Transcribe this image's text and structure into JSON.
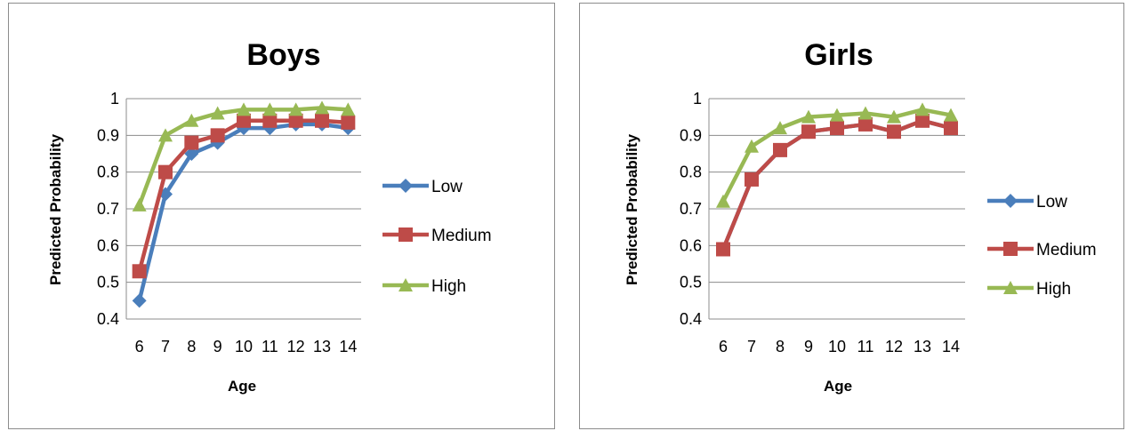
{
  "chart_data": [
    {
      "type": "line",
      "title": "Boys",
      "xlabel": "Age",
      "ylabel": "Predicted Probability",
      "categories": [
        "6",
        "7",
        "8",
        "9",
        "10",
        "11",
        "12",
        "13",
        "14"
      ],
      "ylim": [
        0.4,
        1
      ],
      "yticks": [
        "1",
        "0.9",
        "0.8",
        "0.7",
        "0.6",
        "0.5",
        "0.4"
      ],
      "grid": true,
      "legend": "right",
      "series": [
        {
          "name": "Low",
          "color": "#4a7ebb",
          "marker": "diamond",
          "values": [
            0.45,
            0.74,
            0.85,
            0.88,
            0.92,
            0.92,
            0.93,
            0.93,
            0.92
          ]
        },
        {
          "name": "Medium",
          "color": "#be4b48",
          "marker": "square",
          "values": [
            0.53,
            0.8,
            0.88,
            0.9,
            0.94,
            0.94,
            0.94,
            0.94,
            0.935
          ]
        },
        {
          "name": "High",
          "color": "#98b954",
          "marker": "triangle",
          "values": [
            0.71,
            0.9,
            0.94,
            0.96,
            0.97,
            0.97,
            0.97,
            0.975,
            0.97
          ]
        }
      ]
    },
    {
      "type": "line",
      "title": "Girls",
      "xlabel": "Age",
      "ylabel": "Predicted Probability",
      "categories": [
        "6",
        "7",
        "8",
        "9",
        "10",
        "11",
        "12",
        "13",
        "14"
      ],
      "ylim": [
        0.4,
        1
      ],
      "yticks": [
        "1",
        "0.9",
        "0.8",
        "0.7",
        "0.6",
        "0.5",
        "0.4"
      ],
      "grid": true,
      "legend": "right",
      "series": [
        {
          "name": "Low",
          "color": "#4a7ebb",
          "marker": "diamond",
          "values": [
            0.59,
            0.78,
            0.86,
            0.91,
            0.92,
            0.93,
            0.91,
            0.94,
            0.92
          ]
        },
        {
          "name": "Medium",
          "color": "#be4b48",
          "marker": "square",
          "values": [
            0.59,
            0.78,
            0.86,
            0.91,
            0.92,
            0.93,
            0.91,
            0.94,
            0.92
          ]
        },
        {
          "name": "High",
          "color": "#98b954",
          "marker": "triangle",
          "values": [
            0.72,
            0.87,
            0.92,
            0.95,
            0.955,
            0.96,
            0.95,
            0.97,
            0.955
          ]
        }
      ]
    }
  ]
}
